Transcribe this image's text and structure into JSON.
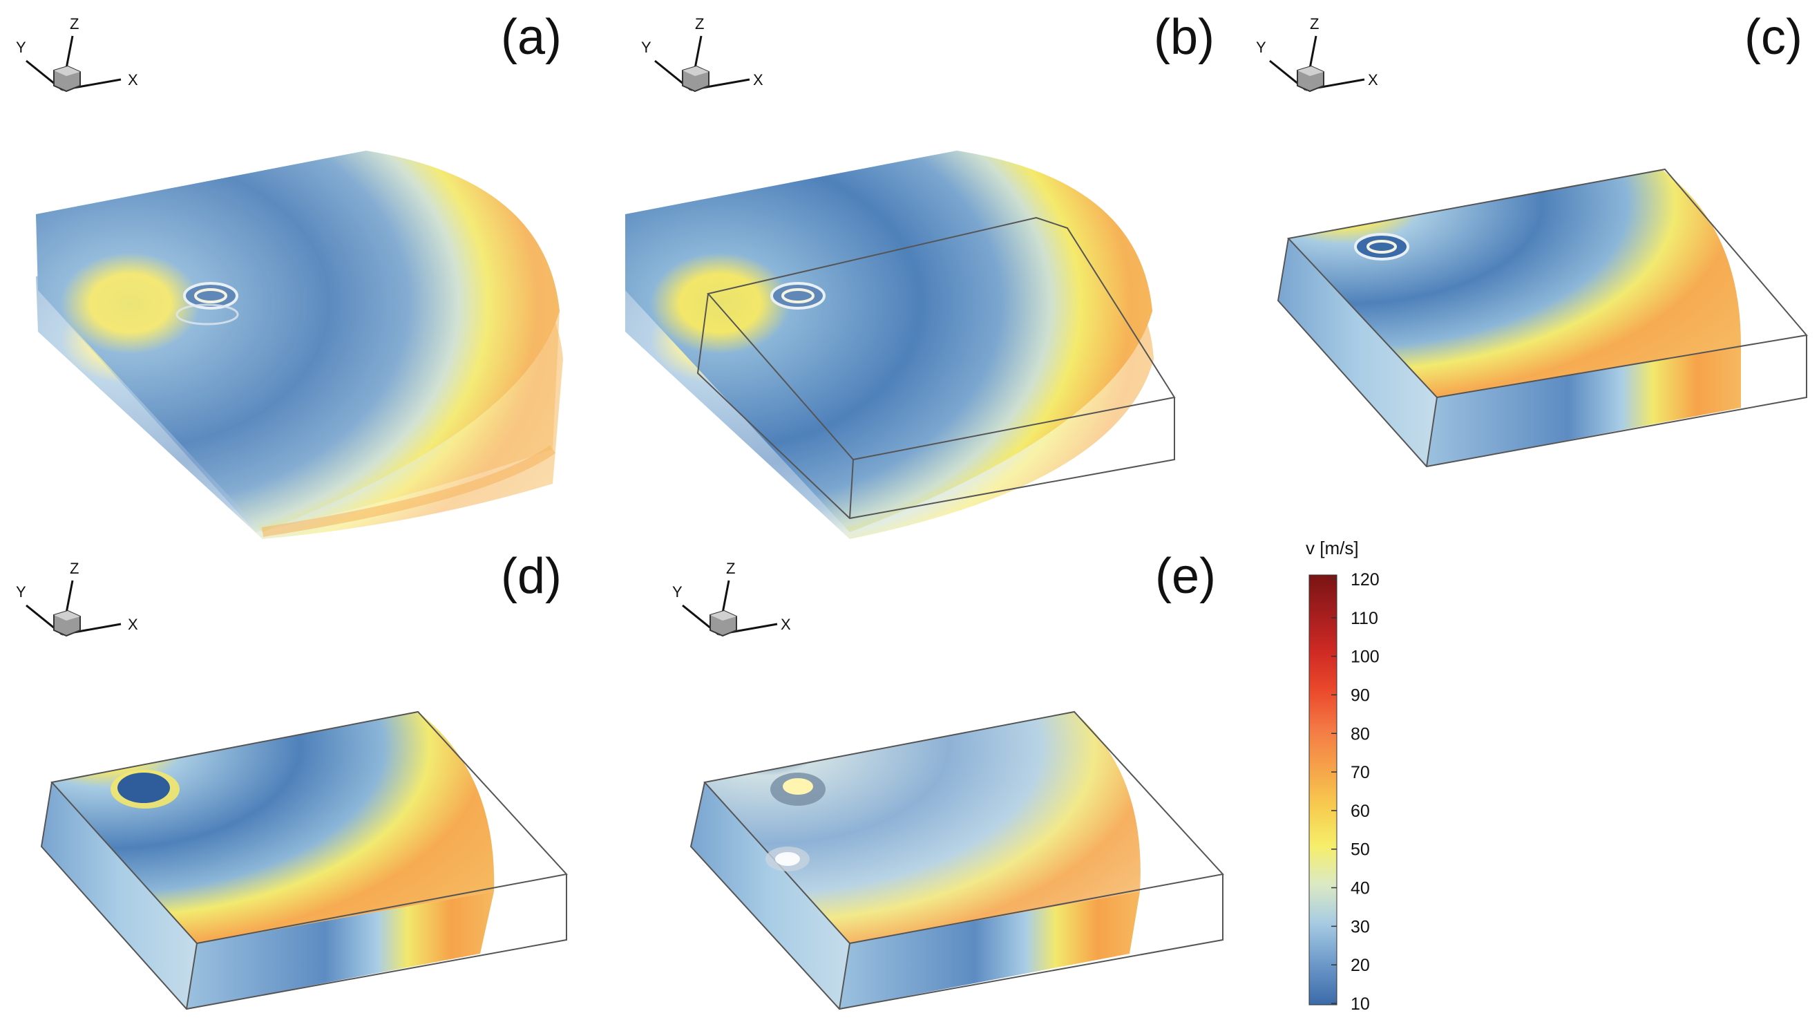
{
  "panels": [
    {
      "label": "(a)",
      "axes": {
        "x": "X",
        "y": "Y",
        "z": "Z"
      },
      "view": "stacked horizontal slices"
    },
    {
      "label": "(b)",
      "axes": {
        "x": "X",
        "y": "Y",
        "z": "Z"
      },
      "view": "stacked horizontal slices with bounding box"
    },
    {
      "label": "(c)",
      "axes": {
        "x": "X",
        "y": "Y",
        "z": "Z"
      },
      "view": "volume in bounding box"
    },
    {
      "label": "(d)",
      "axes": {
        "x": "X",
        "y": "Y",
        "z": "Z"
      },
      "view": "volume in bounding box"
    },
    {
      "label": "(e)",
      "axes": {
        "x": "X",
        "y": "Y",
        "z": "Z"
      },
      "view": "translucent volume in bounding box"
    }
  ],
  "colorbar": {
    "title": "v [m/s]",
    "min": 10,
    "max": 120,
    "ticks": [
      "120",
      "110",
      "100",
      "90",
      "80",
      "70",
      "60",
      "50",
      "40",
      "30",
      "20",
      "10"
    ],
    "colors": {
      "low": "#3b6aa8",
      "mid_low": "#a9cde6",
      "mid": "#f4ee6a",
      "mid_high": "#f6a34a",
      "high": "#7a1414"
    }
  }
}
